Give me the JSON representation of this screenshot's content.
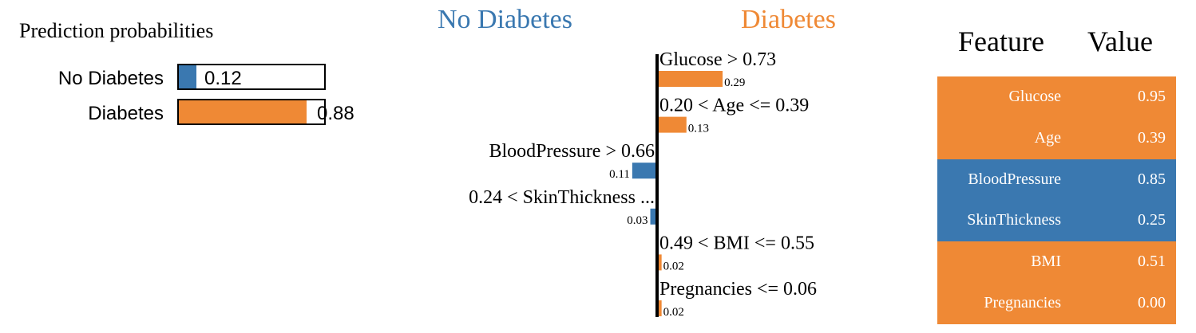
{
  "colors": {
    "negative": "#3a78b0",
    "positive": "#ef8935",
    "axis": "#000000"
  },
  "prediction": {
    "title": "Prediction probabilities",
    "items": [
      {
        "label": "No Diabetes",
        "value": 0.12,
        "value_text": "0.12",
        "color": "#3a78b0"
      },
      {
        "label": "Diabetes",
        "value": 0.88,
        "value_text": "0.88",
        "color": "#ef8935"
      }
    ]
  },
  "class_headers": {
    "negative": "No Diabetes",
    "positive": "Diabetes"
  },
  "chart_data": {
    "type": "bar",
    "orientation": "horizontal",
    "categories": [
      "Glucose > 0.73",
      "0.20 < Age <= 0.39",
      "BloodPressure > 0.66",
      "0.24 < SkinThickness ...",
      "0.49 < BMI <= 0.55",
      "Pregnancies <= 0.06"
    ],
    "values": [
      0.29,
      0.13,
      -0.11,
      -0.03,
      0.02,
      0.02
    ],
    "value_labels": [
      "0.29",
      "0.13",
      "0.11",
      "0.03",
      "0.02",
      "0.02"
    ]
  },
  "feature_table": {
    "headers": [
      "Feature",
      "Value"
    ],
    "rows": [
      {
        "feature": "Glucose",
        "value": "0.95",
        "side": "positive"
      },
      {
        "feature": "Age",
        "value": "0.39",
        "side": "positive"
      },
      {
        "feature": "BloodPressure",
        "value": "0.85",
        "side": "negative"
      },
      {
        "feature": "SkinThickness",
        "value": "0.25",
        "side": "negative"
      },
      {
        "feature": "BMI",
        "value": "0.51",
        "side": "positive"
      },
      {
        "feature": "Pregnancies",
        "value": "0.00",
        "side": "positive"
      }
    ]
  }
}
